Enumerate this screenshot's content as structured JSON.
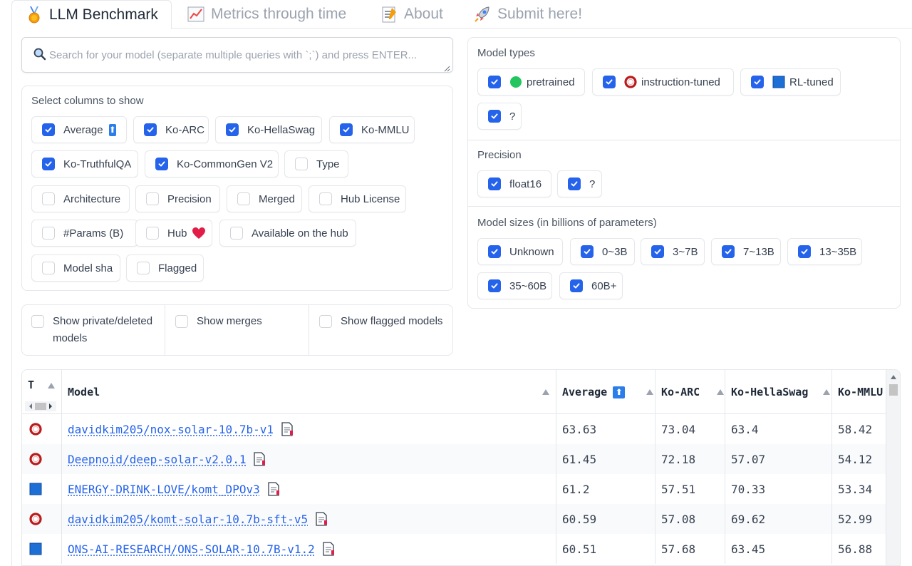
{
  "tabs": [
    {
      "label": "LLM Benchmark",
      "icon": "medal-icon",
      "active": true
    },
    {
      "label": "Metrics through time",
      "icon": "chart-icon",
      "active": false
    },
    {
      "label": "About",
      "icon": "memo-icon",
      "active": false
    },
    {
      "label": "Submit here!",
      "icon": "rocket-icon",
      "active": false
    }
  ],
  "search": {
    "placeholder": "Search for your model (separate multiple queries with `;`) and press ENTER...",
    "value": ""
  },
  "columns_panel": {
    "title": "Select columns to show",
    "items": [
      {
        "label": "Average",
        "checked": true,
        "badge": "⬆"
      },
      {
        "label": "Ko-ARC",
        "checked": true
      },
      {
        "label": "Ko-HellaSwag",
        "checked": true
      },
      {
        "label": "Ko-MMLU",
        "checked": true
      },
      {
        "label": "Ko-TruthfulQA",
        "checked": true
      },
      {
        "label": "Ko-CommonGen V2",
        "checked": true
      },
      {
        "label": "Type",
        "checked": false
      },
      {
        "label": "Architecture",
        "checked": false
      },
      {
        "label": "Precision",
        "checked": false
      },
      {
        "label": "Merged",
        "checked": false
      },
      {
        "label": "Hub License",
        "checked": false
      },
      {
        "label": "#Params (B)",
        "checked": false
      },
      {
        "label": "Hub",
        "checked": false,
        "emoji": "heart"
      },
      {
        "label": "Available on the hub",
        "checked": false
      },
      {
        "label": "Model sha",
        "checked": false
      },
      {
        "label": "Flagged",
        "checked": false
      }
    ]
  },
  "toggles": [
    {
      "label": "Show private/deleted models",
      "checked": false
    },
    {
      "label": "Show merges",
      "checked": false
    },
    {
      "label": "Show flagged models",
      "checked": false
    }
  ],
  "model_types": {
    "title": "Model types",
    "items": [
      {
        "label": "pretrained",
        "checked": true,
        "icon": "green-circle-icon"
      },
      {
        "label": "instruction-tuned",
        "checked": true,
        "icon": "red-ring-icon"
      },
      {
        "label": "RL-tuned",
        "checked": true,
        "icon": "blue-square-icon"
      },
      {
        "label": "?",
        "checked": true
      }
    ]
  },
  "precision": {
    "title": "Precision",
    "items": [
      {
        "label": "float16",
        "checked": true
      },
      {
        "label": "?",
        "checked": true
      }
    ]
  },
  "model_sizes": {
    "title": "Model sizes (in billions of parameters)",
    "items": [
      {
        "label": "Unknown",
        "checked": true
      },
      {
        "label": "0~3B",
        "checked": true
      },
      {
        "label": "3~7B",
        "checked": true
      },
      {
        "label": "7~13B",
        "checked": true
      },
      {
        "label": "13~35B",
        "checked": true
      },
      {
        "label": "35~60B",
        "checked": true
      },
      {
        "label": "60B+",
        "checked": true
      }
    ]
  },
  "table": {
    "headers": [
      "T",
      "Model",
      "Average",
      "Ko-ARC",
      "Ko-HellaSwag",
      "Ko-MMLU"
    ],
    "average_badge": "⬆",
    "rows": [
      {
        "type": "instruction-tuned",
        "model": "davidkim205/nox-solar-10.7b-v1",
        "average": "63.63",
        "arc": "73.04",
        "hellaswag": "63.4",
        "mmlu": "58.42"
      },
      {
        "type": "instruction-tuned",
        "model": "Deepnoid/deep-solar-v2.0.1",
        "average": "61.45",
        "arc": "72.18",
        "hellaswag": "57.07",
        "mmlu": "54.12"
      },
      {
        "type": "RL-tuned",
        "model": "ENERGY-DRINK-LOVE/komt_DPOv3",
        "average": "61.2",
        "arc": "57.51",
        "hellaswag": "70.33",
        "mmlu": "53.34"
      },
      {
        "type": "instruction-tuned",
        "model": "davidkim205/komt-solar-10.7b-sft-v5",
        "average": "60.59",
        "arc": "57.08",
        "hellaswag": "69.62",
        "mmlu": "52.99"
      },
      {
        "type": "RL-tuned",
        "model": "ONS-AI-RESEARCH/ONS-SOLAR-10.7B-v1.2",
        "average": "60.51",
        "arc": "57.68",
        "hellaswag": "63.45",
        "mmlu": "56.88"
      }
    ]
  },
  "colors": {
    "accent": "#2563eb",
    "pretrained": "#22c55e",
    "instruction": "#b91c1c",
    "rl": "#1d6fd6"
  }
}
